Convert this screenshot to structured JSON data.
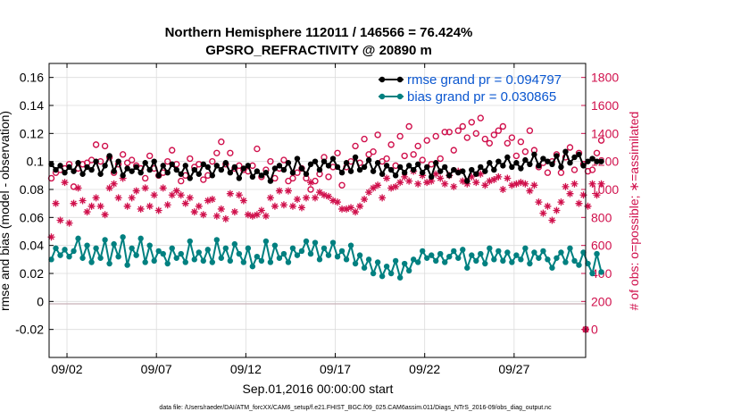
{
  "chart_data": {
    "type": "line",
    "title": "Northern Hemisphere 112011 / 146566 = 76.424%",
    "subtitle": "GPSRO_REFRACTIVITY @ 20890 m",
    "xlabel": "Sep.01,2016 00:00:00 start",
    "ylabel": "rmse and bias (model - observation)",
    "y2label": "# of obs: o=possible; ∗=assimilated",
    "footer": "data file: /Users/raeder/DAI/ATM_forcXX/CAM6_setup/f.e21.FHIST_BGC.f09_025.CAM6assim.011/Diags_NTrS_2016-09/obs_diag_output.nc",
    "x_tick_labels": [
      "09/02",
      "09/07",
      "09/12",
      "09/17",
      "09/22",
      "09/27"
    ],
    "x_tick_values": [
      2,
      7,
      12,
      17,
      22,
      27
    ],
    "xlim": [
      1.0,
      31.0
    ],
    "ylim": [
      -0.04,
      0.17
    ],
    "y_ticks": [
      -0.02,
      0,
      0.02,
      0.04,
      0.06,
      0.08,
      0.1,
      0.12,
      0.14,
      0.16
    ],
    "y_tick_labels": [
      "-0.02",
      "0",
      "0.02",
      "0.04",
      "0.06",
      "0.08",
      "0.1",
      "0.12",
      "0.14",
      "0.16"
    ],
    "y2lim": [
      -200,
      1900
    ],
    "y2_ticks": [
      0,
      200,
      400,
      600,
      800,
      1000,
      1200,
      1400,
      1600,
      1800
    ],
    "y2_tick_labels": [
      "0",
      "200",
      "400",
      "600",
      "800",
      "1000",
      "1200",
      "1400",
      "1600",
      "1800"
    ],
    "grid": true,
    "legend_position": "top-right",
    "colors": {
      "rmse": "#000000",
      "bias": "#008080",
      "obs": "#d0104c",
      "legend_text": "#0b57d0",
      "zero_line": "#c8b0b8"
    },
    "series": [
      {
        "name": "rmse grand pr = 0.094797",
        "axis": "left",
        "x_start": 1.125,
        "x_step": 0.25,
        "values": [
          0.098,
          0.094,
          0.097,
          0.092,
          0.096,
          0.093,
          0.099,
          0.091,
          0.096,
          0.094,
          0.1,
          0.091,
          0.097,
          0.104,
          0.093,
          0.1,
          0.09,
          0.095,
          0.093,
          0.096,
          0.092,
          0.099,
          0.094,
          0.1,
          0.09,
          0.097,
          0.092,
          0.098,
          0.094,
          0.091,
          0.097,
          0.088,
          0.094,
          0.091,
          0.098,
          0.096,
          0.09,
          0.097,
          0.094,
          0.099,
          0.092,
          0.096,
          0.088,
          0.095,
          0.097,
          0.089,
          0.093,
          0.09,
          0.092,
          0.086,
          0.095,
          0.097,
          0.094,
          0.099,
          0.092,
          0.102,
          0.095,
          0.091,
          0.098,
          0.1,
          0.094,
          0.1,
          0.097,
          0.102,
          0.096,
          0.092,
          0.099,
          0.093,
          0.103,
          0.094,
          0.096,
          0.101,
          0.093,
          0.099,
          0.091,
          0.097,
          0.094,
          0.09,
          0.096,
          0.092,
          0.097,
          0.094,
          0.098,
          0.092,
          0.096,
          0.089,
          0.099,
          0.093,
          0.096,
          0.09,
          0.094,
          0.092,
          0.093,
          0.086,
          0.094,
          0.091,
          0.096,
          0.093,
          0.099,
          0.094,
          0.1,
          0.097,
          0.103,
          0.096,
          0.099,
          0.095,
          0.101,
          0.098,
          0.105,
          0.097,
          0.102,
          0.1,
          0.098,
          0.104,
          0.096,
          0.107,
          0.099,
          0.103,
          0.105,
          0.097,
          0.1,
          0.102,
          0.1,
          0.1
        ]
      },
      {
        "name": "bias grand pr = 0.030865",
        "axis": "left",
        "x_start": 1.125,
        "x_step": 0.25,
        "values": [
          0.03,
          0.038,
          0.033,
          0.037,
          0.032,
          0.036,
          0.045,
          0.031,
          0.04,
          0.028,
          0.038,
          0.031,
          0.044,
          0.027,
          0.041,
          0.032,
          0.046,
          0.026,
          0.038,
          0.033,
          0.045,
          0.028,
          0.04,
          0.029,
          0.036,
          0.034,
          0.027,
          0.038,
          0.031,
          0.034,
          0.028,
          0.043,
          0.03,
          0.035,
          0.029,
          0.037,
          0.028,
          0.044,
          0.031,
          0.038,
          0.029,
          0.041,
          0.034,
          0.028,
          0.038,
          0.025,
          0.032,
          0.029,
          0.043,
          0.028,
          0.04,
          0.031,
          0.034,
          0.028,
          0.038,
          0.033,
          0.036,
          0.043,
          0.034,
          0.042,
          0.03,
          0.038,
          0.033,
          0.042,
          0.032,
          0.036,
          0.03,
          0.04,
          0.027,
          0.033,
          0.024,
          0.03,
          0.02,
          0.028,
          0.018,
          0.025,
          0.02,
          0.029,
          0.017,
          0.027,
          0.022,
          0.03,
          0.028,
          0.036,
          0.031,
          0.033,
          0.029,
          0.034,
          0.028,
          0.032,
          0.036,
          0.031,
          0.037,
          0.024,
          0.033,
          0.029,
          0.034,
          0.027,
          0.038,
          0.03,
          0.036,
          0.029,
          0.035,
          0.028,
          0.033,
          0.03,
          0.038,
          0.027,
          0.035,
          0.031,
          0.036,
          0.03,
          0.024,
          0.031,
          0.035,
          0.028,
          0.038,
          0.029,
          0.026,
          0.035,
          0.027,
          0.02,
          0.034,
          0.021
        ]
      },
      {
        "name": "# of obs possible",
        "axis": "right",
        "marker": "o",
        "x_start": 1.125,
        "x_step": 0.25,
        "values": [
          1080,
          1120,
          1140,
          1150,
          1180,
          1020,
          1150,
          1180,
          1190,
          1210,
          1320,
          1200,
          1310,
          1230,
          1120,
          1180,
          1250,
          1190,
          1210,
          1170,
          1150,
          1080,
          1240,
          1150,
          1100,
          1120,
          1200,
          1280,
          1180,
          1060,
          1100,
          1220,
          1160,
          1180,
          1070,
          1100,
          1200,
          1260,
          1340,
          1180,
          1260,
          1150,
          1170,
          1140,
          1130,
          1170,
          1290,
          1090,
          1140,
          1200,
          1080,
          1150,
          1210,
          1060,
          1080,
          1120,
          1150,
          1080,
          1000,
          1060,
          1110,
          1230,
          1090,
          1160,
          1260,
          1030,
          1160,
          1200,
          1310,
          1190,
          1360,
          1250,
          1270,
          1390,
          1200,
          1220,
          1320,
          1170,
          1380,
          1240,
          1450,
          1250,
          1310,
          1210,
          1350,
          1180,
          1380,
          1220,
          1410,
          1410,
          1280,
          1420,
          1450,
          1370,
          1480,
          1400,
          1510,
          1360,
          1330,
          1390,
          1420,
          1450,
          1330,
          1370,
          1240,
          1340,
          1270,
          1420,
          1280,
          1160,
          1190,
          1120,
          1200,
          1250,
          1120,
          1230,
          1300,
          1140,
          1260,
          1180,
          1130,
          1140,
          1260,
          1350
        ]
      },
      {
        "name": "# of obs assimilated",
        "axis": "right",
        "marker": "*",
        "x_start": 1.125,
        "x_step": 0.25,
        "values": [
          660,
          900,
          780,
          1050,
          760,
          900,
          1010,
          920,
          840,
          880,
          940,
          880,
          820,
          1010,
          1040,
          940,
          1080,
          880,
          940,
          990,
          860,
          1010,
          880,
          960,
          850,
          1010,
          890,
          960,
          990,
          960,
          900,
          940,
          840,
          880,
          820,
          920,
          930,
          810,
          860,
          790,
          970,
          840,
          960,
          920,
          820,
          810,
          820,
          850,
          810,
          940,
          880,
          990,
          890,
          990,
          880,
          930,
          870,
          940,
          1050,
          940,
          980,
          960,
          950,
          920,
          910,
          860,
          860,
          870,
          840,
          880,
          930,
          980,
          1010,
          1030,
          940,
          1080,
          1010,
          1020,
          1050,
          1090,
          1060,
          1130,
          1040,
          1100,
          1050,
          1060,
          1110,
          1080,
          1040,
          1100,
          1020,
          1130,
          1060,
          1040,
          1090,
          1050,
          1110,
          1030,
          1060,
          1070,
          1090,
          1000,
          1080,
          1030,
          1040,
          1050,
          1040,
          990,
          1030,
          910,
          830,
          880,
          780,
          850,
          910,
          1020,
          970,
          1040,
          900,
          960,
          880,
          1040,
          960,
          1040
        ]
      }
    ],
    "outlier_obs": {
      "x": 31.0,
      "possible": 0,
      "assimilated": 0
    }
  }
}
